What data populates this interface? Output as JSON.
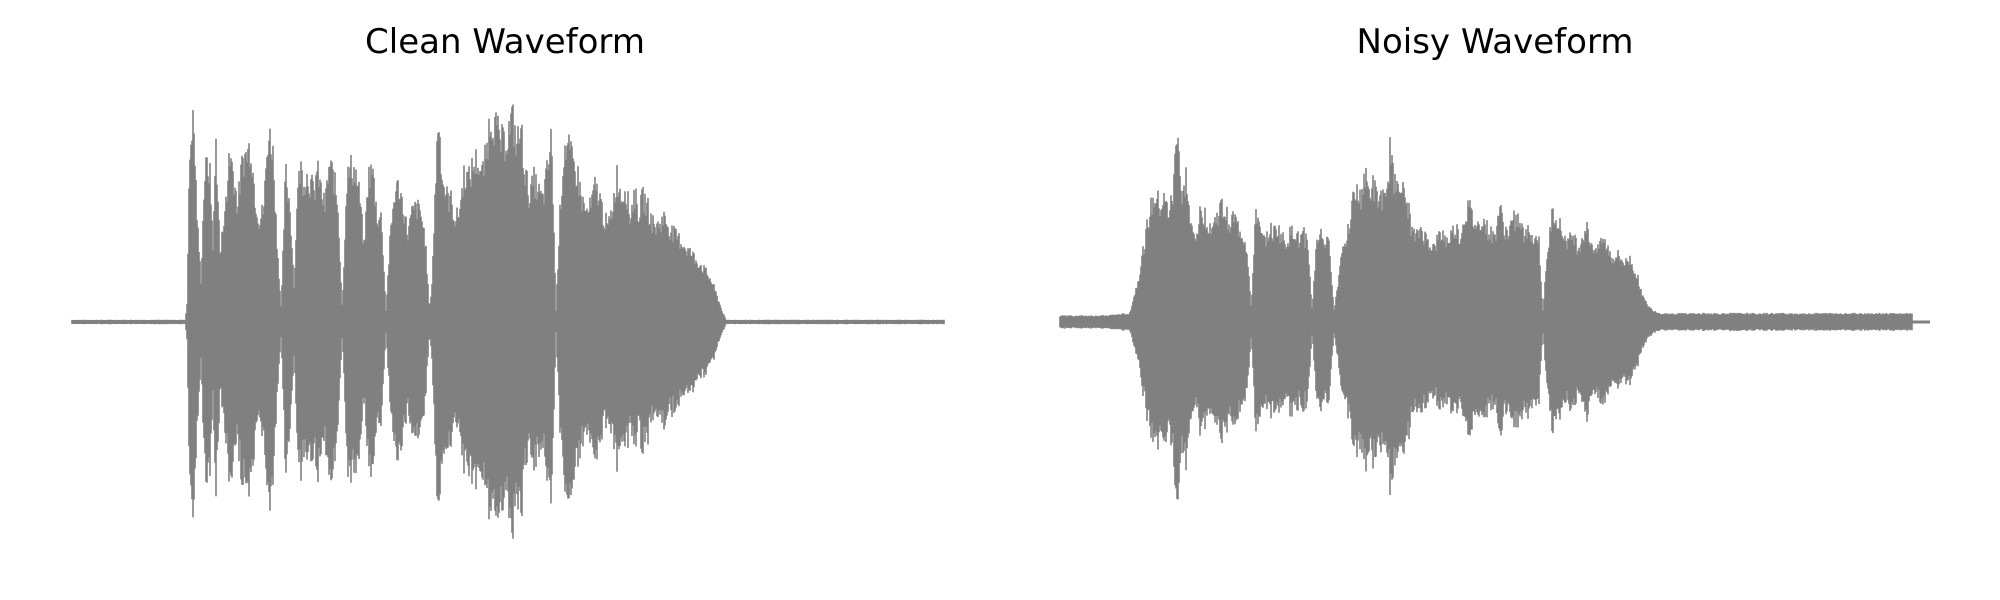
{
  "chart_data": [
    {
      "type": "area",
      "title": "Clean Waveform",
      "axes_visible": false,
      "grid": false,
      "line_color": "#808080",
      "xlim": [
        0,
        1
      ],
      "ylim": [
        -1,
        1
      ],
      "series": [
        {
          "x": [
            0.0,
            0.13,
            0.132,
            0.135,
            0.138,
            0.14,
            0.144,
            0.148,
            0.152,
            0.155,
            0.158,
            0.162,
            0.165,
            0.17,
            0.175,
            0.178,
            0.18,
            0.184,
            0.188,
            0.19,
            0.193,
            0.196,
            0.2,
            0.205,
            0.21,
            0.215,
            0.22,
            0.225,
            0.23,
            0.235,
            0.24,
            0.245,
            0.25,
            0.255,
            0.258,
            0.262,
            0.265,
            0.27,
            0.275,
            0.278,
            0.28,
            0.283,
            0.286,
            0.29,
            0.295,
            0.3,
            0.305,
            0.31,
            0.315,
            0.32,
            0.325,
            0.33,
            0.335,
            0.34,
            0.345,
            0.35,
            0.355,
            0.36,
            0.365,
            0.37,
            0.375,
            0.38,
            0.385,
            0.39,
            0.395,
            0.4,
            0.405,
            0.41,
            0.413,
            0.416,
            0.42,
            0.425,
            0.43,
            0.435,
            0.44,
            0.445,
            0.45,
            0.455,
            0.46,
            0.465,
            0.47,
            0.475,
            0.478,
            0.48,
            0.485,
            0.49,
            0.495,
            0.5,
            0.505,
            0.51,
            0.515,
            0.52,
            0.525,
            0.53,
            0.535,
            0.54,
            0.545,
            0.55,
            0.555,
            0.56,
            0.565,
            0.57,
            0.575,
            0.58,
            0.585,
            0.59,
            0.595,
            0.6,
            0.605,
            0.61,
            0.615,
            0.62,
            0.625,
            0.63,
            0.635,
            0.64,
            0.645,
            0.65,
            0.655,
            0.66,
            0.665,
            0.67,
            0.675,
            0.68,
            0.685,
            0.69,
            0.695,
            0.7,
            0.705,
            0.71,
            0.715,
            0.72,
            0.725,
            0.73,
            0.735,
            0.74,
            0.745,
            0.75,
            0.755,
            0.76,
            0.765,
            0.77,
            0.775,
            0.78,
            0.785,
            0.79,
            0.795,
            0.8,
            0.805,
            0.81,
            0.815,
            0.82,
            0.825,
            0.83,
            0.835,
            0.84,
            0.845,
            0.85,
            0.855,
            0.86,
            0.865,
            0.87,
            0.875,
            0.88,
            0.885,
            0.89,
            0.895,
            1.0
          ],
          "amplitude": [
            0.01,
            0.01,
            0.1,
            0.78,
            0.98,
            0.9,
            0.45,
            0.2,
            0.7,
            0.75,
            0.72,
            0.35,
            0.88,
            0.3,
            0.55,
            0.58,
            0.82,
            0.75,
            0.62,
            0.55,
            0.68,
            0.78,
            0.8,
            0.85,
            0.6,
            0.48,
            0.55,
            0.9,
            0.85,
            0.4,
            0.05,
            0.72,
            0.55,
            0.15,
            0.58,
            0.75,
            0.68,
            0.7,
            0.65,
            0.6,
            0.72,
            0.7,
            0.62,
            0.55,
            0.75,
            0.7,
            0.55,
            0.05,
            0.68,
            0.74,
            0.72,
            0.6,
            0.35,
            0.7,
            0.72,
            0.5,
            0.5,
            0.05,
            0.4,
            0.62,
            0.65,
            0.55,
            0.42,
            0.52,
            0.55,
            0.52,
            0.4,
            0.05,
            0.2,
            0.55,
            1.0,
            0.68,
            0.6,
            0.58,
            0.48,
            0.55,
            0.72,
            0.68,
            0.75,
            0.78,
            0.7,
            0.8,
            0.92,
            0.98,
            0.95,
            0.88,
            0.85,
            0.9,
            0.98,
            0.85,
            0.92,
            0.7,
            0.6,
            0.68,
            0.62,
            0.58,
            0.72,
            0.88,
            0.05,
            0.55,
            0.85,
            0.82,
            0.75,
            0.7,
            0.58,
            0.52,
            0.55,
            0.65,
            0.6,
            0.5,
            0.45,
            0.55,
            0.7,
            0.6,
            0.65,
            0.5,
            0.62,
            0.52,
            0.6,
            0.55,
            0.48,
            0.45,
            0.48,
            0.5,
            0.45,
            0.42,
            0.4,
            0.38,
            0.35,
            0.33,
            0.3,
            0.28,
            0.25,
            0.22,
            0.18,
            0.12,
            0.06,
            0.01,
            0.01,
            0.01,
            0.01,
            0.01,
            0.01,
            0.01,
            0.01,
            0.01,
            0.01,
            0.01,
            0.01,
            0.01,
            0.01,
            0.01,
            0.01,
            0.01,
            0.01,
            0.01,
            0.01,
            0.01,
            0.01,
            0.01,
            0.01,
            0.01,
            0.01,
            0.01,
            0.01,
            0.01,
            0.01,
            0.01,
            0.01,
            0.01
          ]
        }
      ]
    },
    {
      "type": "area",
      "title": "Noisy Waveform",
      "axes_visible": false,
      "grid": false,
      "line_color": "#808080",
      "xlim": [
        0,
        1
      ],
      "ylim": [
        -1,
        1
      ],
      "series": [
        {
          "x": [
            0.0,
            0.05,
            0.08,
            0.09,
            0.1,
            0.105,
            0.11,
            0.115,
            0.12,
            0.125,
            0.13,
            0.135,
            0.14,
            0.145,
            0.15,
            0.155,
            0.16,
            0.165,
            0.17,
            0.175,
            0.18,
            0.185,
            0.19,
            0.195,
            0.2,
            0.205,
            0.21,
            0.215,
            0.22,
            0.225,
            0.23,
            0.235,
            0.24,
            0.245,
            0.25,
            0.255,
            0.26,
            0.265,
            0.27,
            0.275,
            0.28,
            0.285,
            0.29,
            0.295,
            0.3,
            0.305,
            0.31,
            0.315,
            0.32,
            0.325,
            0.33,
            0.335,
            0.34,
            0.345,
            0.35,
            0.355,
            0.36,
            0.365,
            0.37,
            0.375,
            0.38,
            0.385,
            0.39,
            0.395,
            0.4,
            0.405,
            0.41,
            0.415,
            0.42,
            0.425,
            0.43,
            0.435,
            0.44,
            0.445,
            0.45,
            0.455,
            0.46,
            0.465,
            0.47,
            0.475,
            0.48,
            0.485,
            0.49,
            0.495,
            0.5,
            0.505,
            0.51,
            0.515,
            0.52,
            0.525,
            0.53,
            0.535,
            0.54,
            0.545,
            0.55,
            0.555,
            0.56,
            0.565,
            0.57,
            0.575,
            0.58,
            0.585,
            0.59,
            0.595,
            0.6,
            0.605,
            0.61,
            0.615,
            0.62,
            0.625,
            0.63,
            0.635,
            0.64,
            0.645,
            0.65,
            0.655,
            0.66,
            0.665,
            0.67,
            0.675,
            0.68,
            0.685,
            0.69,
            0.695,
            0.7,
            0.705,
            0.71,
            0.715,
            0.72,
            0.725,
            0.73,
            0.735,
            0.74,
            0.745,
            0.75,
            0.755,
            0.76,
            0.765,
            0.77,
            0.775,
            0.78,
            0.785,
            0.79,
            0.795,
            0.8,
            0.805,
            0.81,
            0.815,
            0.82,
            0.825,
            0.83,
            0.835,
            0.84,
            0.845,
            0.85,
            0.855,
            0.86,
            0.865,
            0.87,
            0.875,
            0.88,
            0.885,
            0.89,
            0.895,
            0.9,
            0.905,
            0.91,
            0.915,
            0.92,
            0.925,
            0.93,
            0.935,
            0.94,
            0.945,
            0.95,
            0.955,
            0.96,
            0.965,
            0.97,
            0.975,
            0.98,
            0.985,
            0.99,
            1.0
          ],
          "amplitude": [
            0.03,
            0.03,
            0.04,
            0.2,
            0.45,
            0.55,
            0.6,
            0.55,
            0.58,
            0.52,
            0.6,
            0.98,
            0.55,
            0.7,
            0.45,
            0.4,
            0.5,
            0.52,
            0.48,
            0.45,
            0.5,
            0.55,
            0.52,
            0.48,
            0.5,
            0.45,
            0.42,
            0.35,
            0.05,
            0.55,
            0.42,
            0.38,
            0.45,
            0.42,
            0.45,
            0.4,
            0.38,
            0.42,
            0.44,
            0.38,
            0.42,
            0.36,
            0.05,
            0.4,
            0.42,
            0.38,
            0.36,
            0.05,
            0.2,
            0.38,
            0.42,
            0.55,
            0.62,
            0.58,
            0.7,
            0.62,
            0.65,
            0.58,
            0.6,
            0.55,
            0.85,
            0.65,
            0.7,
            0.6,
            0.55,
            0.42,
            0.4,
            0.45,
            0.4,
            0.38,
            0.35,
            0.4,
            0.42,
            0.38,
            0.42,
            0.45,
            0.4,
            0.5,
            0.55,
            0.48,
            0.45,
            0.5,
            0.45,
            0.42,
            0.4,
            0.55,
            0.45,
            0.42,
            0.48,
            0.5,
            0.45,
            0.4,
            0.45,
            0.38,
            0.42,
            0.05,
            0.3,
            0.5,
            0.52,
            0.45,
            0.4,
            0.38,
            0.42,
            0.35,
            0.4,
            0.45,
            0.38,
            0.35,
            0.4,
            0.38,
            0.35,
            0.3,
            0.32,
            0.3,
            0.28,
            0.3,
            0.25,
            0.2,
            0.12,
            0.08,
            0.06,
            0.05,
            0.04,
            0.04,
            0.04,
            0.04,
            0.04,
            0.04,
            0.04,
            0.04,
            0.04,
            0.04,
            0.04,
            0.04,
            0.04,
            0.04,
            0.04,
            0.04,
            0.04,
            0.04,
            0.04,
            0.04,
            0.04,
            0.04,
            0.04,
            0.04,
            0.04,
            0.04,
            0.04,
            0.04,
            0.04,
            0.04,
            0.04,
            0.04,
            0.04,
            0.04,
            0.04,
            0.04,
            0.04,
            0.04,
            0.04,
            0.04,
            0.04,
            0.04,
            0.04,
            0.04,
            0.04,
            0.04,
            0.04,
            0.04,
            0.04,
            0.04,
            0.04,
            0.04,
            0.04,
            0.04,
            0.04,
            0.04,
            0.04,
            0.04,
            0.04
          ]
        }
      ]
    }
  ]
}
